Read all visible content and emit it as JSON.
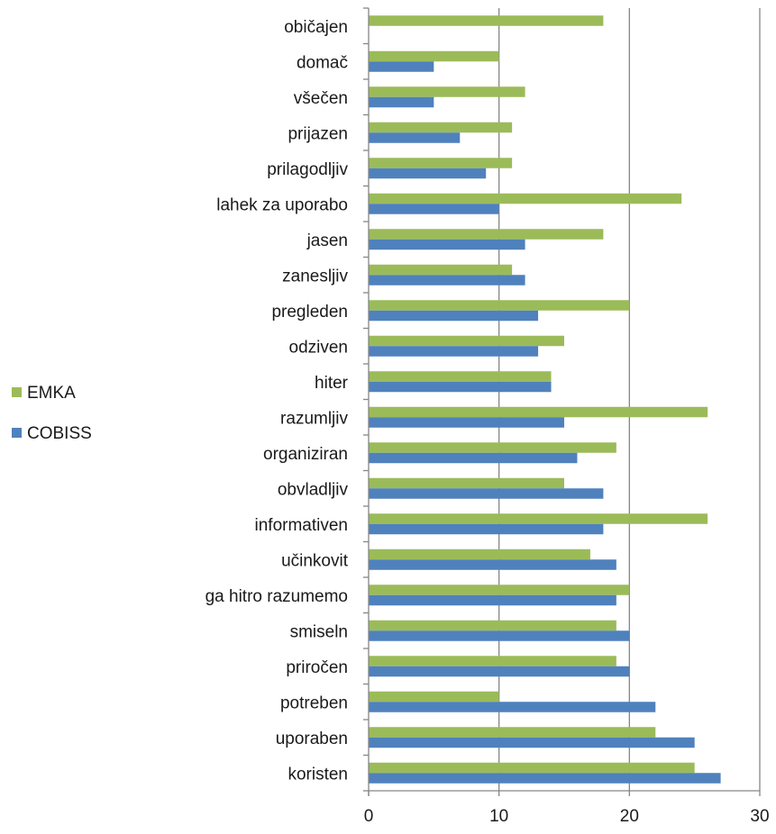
{
  "chart_data": {
    "type": "bar",
    "orientation": "horizontal",
    "categories": [
      "koristen",
      "uporaben",
      "potreben",
      "priročen",
      "smiseln",
      "ga hitro razumemo",
      "učinkovit",
      "informativen",
      "obvladljiv",
      "organiziran",
      "razumljiv",
      "hiter",
      "odziven",
      "pregleden",
      "zanesljiv",
      "jasen",
      "lahek za uporabo",
      "prilagodljiv",
      "prijazen",
      "všečen",
      "domač",
      "običajen"
    ],
    "series": [
      {
        "name": "COBISS",
        "color": "#4F81BD",
        "values": [
          27,
          25,
          22,
          20,
          20,
          19,
          19,
          18,
          18,
          16,
          15,
          14,
          13,
          13,
          12,
          12,
          10,
          9,
          7,
          5,
          5,
          0
        ]
      },
      {
        "name": "EMKA",
        "color": "#9BBB59",
        "values": [
          25,
          22,
          10,
          19,
          19,
          20,
          17,
          26,
          15,
          19,
          26,
          14,
          15,
          20,
          11,
          18,
          24,
          11,
          11,
          12,
          10,
          18
        ]
      }
    ],
    "xlim": [
      0,
      30
    ],
    "xticks": [
      0,
      10,
      20,
      30
    ],
    "xticklabels": [
      "0",
      "10",
      "20",
      "30"
    ],
    "grid": true,
    "legend_position": "left",
    "legend_order": [
      "EMKA",
      "COBISS"
    ]
  }
}
